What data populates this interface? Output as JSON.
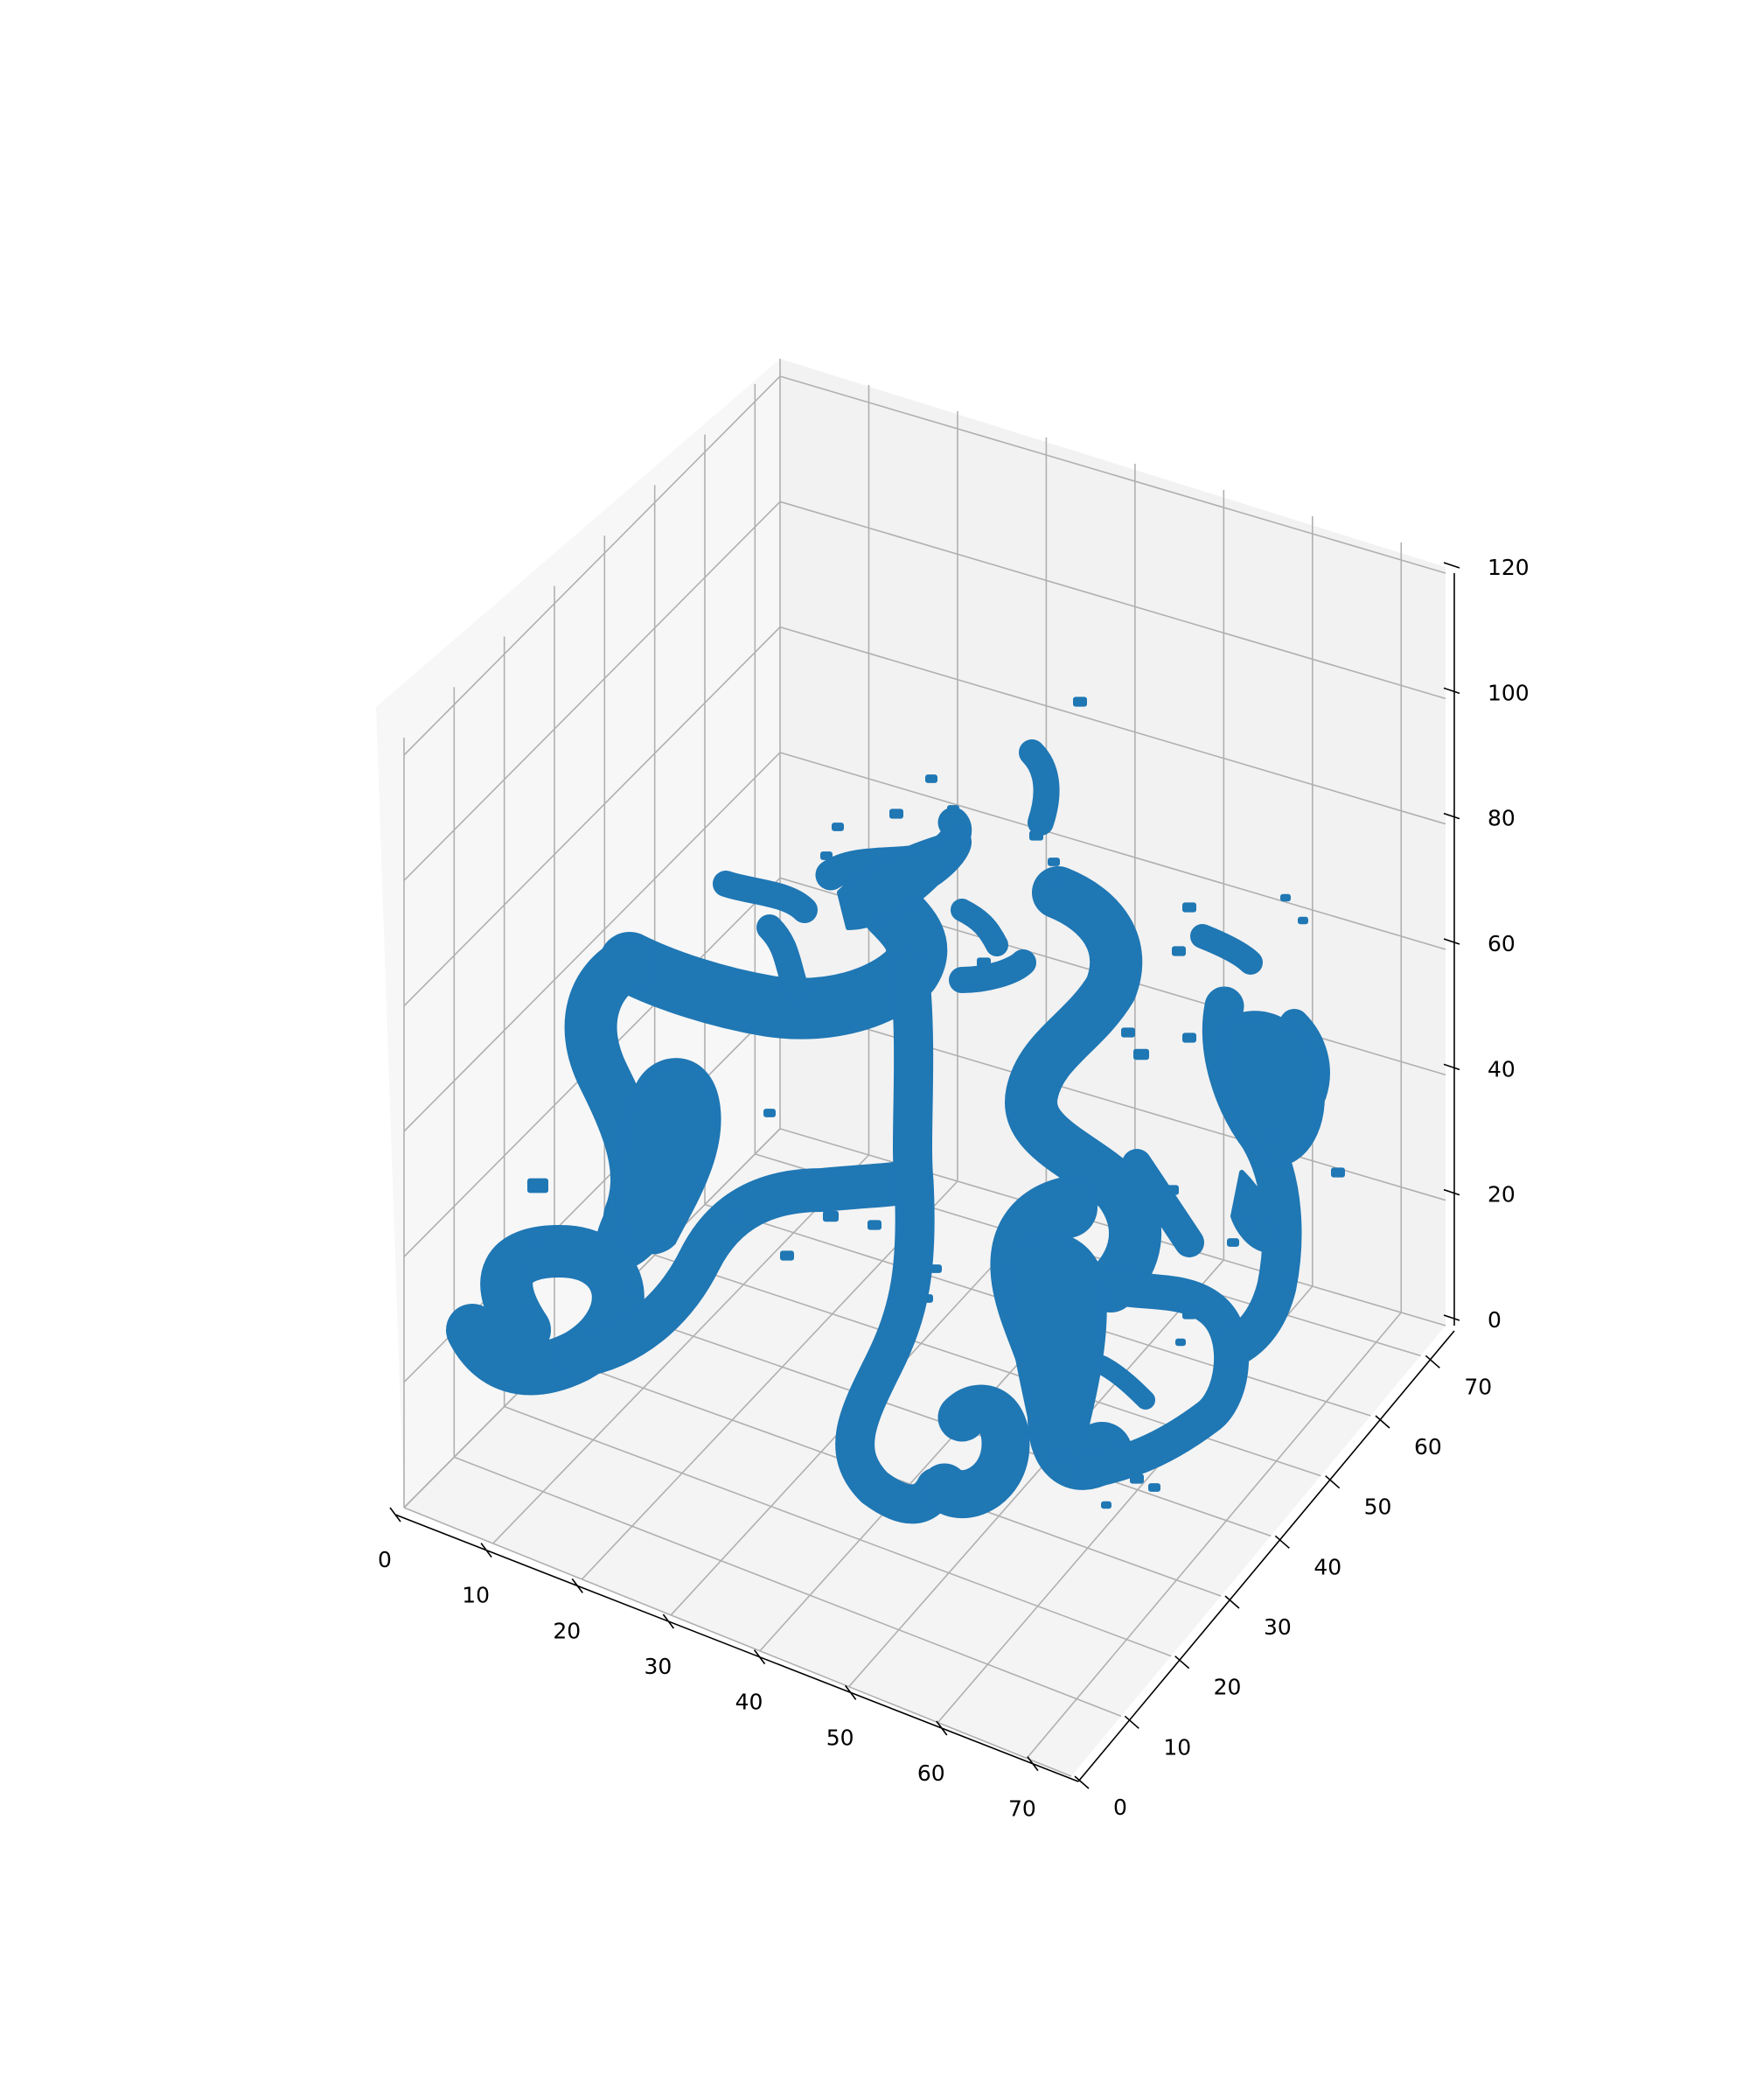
{
  "chart_data": {
    "type": "scatter",
    "projection": "3d",
    "title": "",
    "xlabel": "",
    "ylabel": "",
    "zlabel": "",
    "xlim": [
      0,
      75
    ],
    "ylim": [
      0,
      75
    ],
    "zlim": [
      0,
      120
    ],
    "x_ticks": [
      "0",
      "10",
      "20",
      "30",
      "40",
      "50",
      "60",
      "70"
    ],
    "y_ticks": [
      "0",
      "10",
      "20",
      "30",
      "40",
      "50",
      "60",
      "70"
    ],
    "z_ticks": [
      "0",
      "20",
      "40",
      "60",
      "80",
      "100",
      "120"
    ],
    "grid": true,
    "marker": "voxel",
    "series": [
      {
        "color": "#1f77b4",
        "description_of_shape": "tubular vessel-like voxel structure"
      }
    ]
  }
}
